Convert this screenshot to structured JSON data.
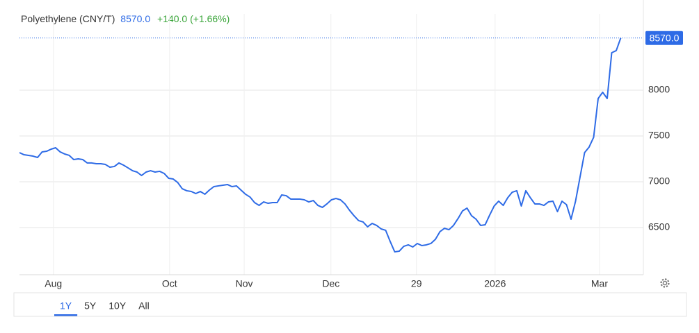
{
  "chart_data": {
    "type": "line",
    "title": "Polyethylene (CNY/T)",
    "last_price": {
      "value": 8570,
      "label": "8570.0"
    },
    "change": {
      "value": 140,
      "label": "+140.0"
    },
    "change_pct": {
      "value": 1.66,
      "label": "(+1.66%)"
    },
    "series": [
      {
        "color": "#2e6be6",
        "values": [
          7318,
          7295,
          7288,
          7280,
          7265,
          7326,
          7333,
          7356,
          7371,
          7326,
          7303,
          7288,
          7242,
          7250,
          7242,
          7205,
          7205,
          7197,
          7197,
          7189,
          7159,
          7167,
          7205,
          7182,
          7152,
          7121,
          7106,
          7068,
          7106,
          7121,
          7106,
          7114,
          7091,
          7038,
          7030,
          6992,
          6924,
          6902,
          6894,
          6871,
          6894,
          6864,
          6909,
          6947,
          6955,
          6962,
          6970,
          6947,
          6955,
          6909,
          6864,
          6833,
          6773,
          6742,
          6780,
          6765,
          6773,
          6773,
          6856,
          6848,
          6811,
          6811,
          6811,
          6803,
          6780,
          6795,
          6742,
          6720,
          6758,
          6803,
          6818,
          6803,
          6758,
          6689,
          6629,
          6576,
          6561,
          6508,
          6545,
          6523,
          6485,
          6470,
          6348,
          6235,
          6242,
          6295,
          6311,
          6288,
          6326,
          6303,
          6311,
          6326,
          6371,
          6455,
          6492,
          6477,
          6523,
          6598,
          6682,
          6712,
          6629,
          6591,
          6523,
          6530,
          6636,
          6735,
          6788,
          6742,
          6826,
          6886,
          6902,
          6735,
          6902,
          6826,
          6758,
          6758,
          6742,
          6780,
          6788,
          6674,
          6788,
          6750,
          6591,
          6788,
          7053,
          7318,
          7379,
          7485,
          7909,
          7977,
          7909,
          8409,
          8432,
          8570
        ]
      }
    ],
    "xlim": [
      0,
      138
    ],
    "xticks": [
      {
        "value": 7.5,
        "label": "Aug"
      },
      {
        "value": 33.2,
        "label": "Oct"
      },
      {
        "value": 49.7,
        "label": "Nov"
      },
      {
        "value": 68.9,
        "label": "Dec"
      },
      {
        "value": 87.8,
        "label": "29"
      },
      {
        "value": 105.2,
        "label": "2026"
      },
      {
        "value": 128.3,
        "label": "Mar"
      }
    ],
    "ylim": [
      5985,
      8833
    ],
    "yticks": [
      6500,
      7000,
      7500,
      8000
    ],
    "grid": true,
    "ranges": [
      "1Y",
      "5Y",
      "10Y",
      "All"
    ],
    "selected_range": "1Y"
  }
}
